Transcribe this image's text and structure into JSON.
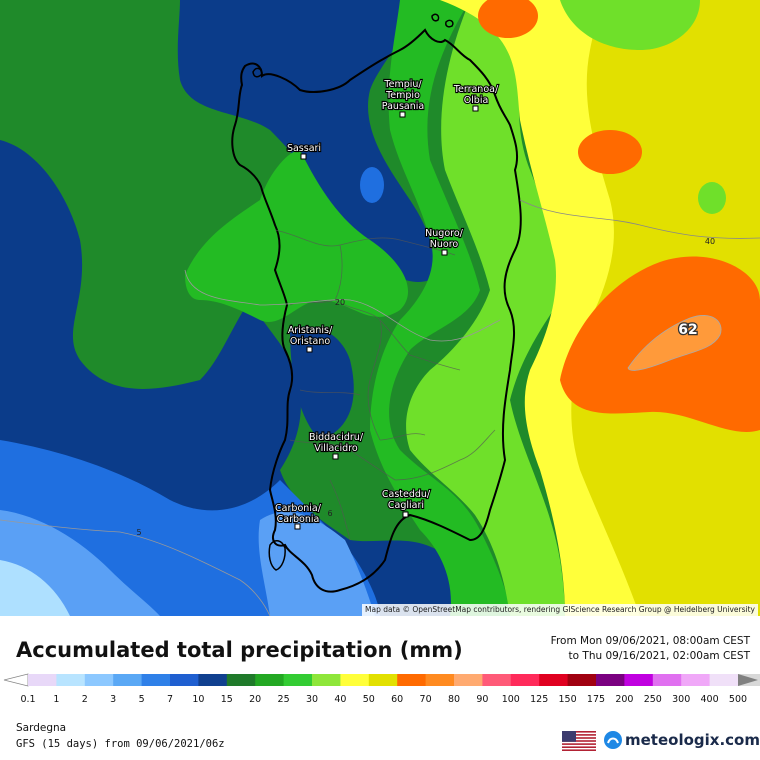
{
  "map": {
    "attribution": "Map data © OpenStreetMap contributors, rendering GIScience Research Group @ Heidelberg University",
    "max_value_label": "62",
    "contour_labels": [
      "40",
      "20",
      "5",
      "6"
    ],
    "cities": [
      {
        "name": "Tempiu/",
        "name2": "Tempio",
        "name3": "Pausania"
      },
      {
        "name": "Terranoa/",
        "name2": "Olbia",
        "name3": ""
      },
      {
        "name": "Sassari",
        "name2": "",
        "name3": ""
      },
      {
        "name": "Nugoro/",
        "name2": "Nuoro",
        "name3": ""
      },
      {
        "name": "Aristanis/",
        "name2": "Oristano",
        "name3": ""
      },
      {
        "name": "Biddacidru/",
        "name2": "Villacidro",
        "name3": ""
      },
      {
        "name": "Carbonia/",
        "name2": "Carbonia",
        "name3": ""
      },
      {
        "name": "Casteddu/",
        "name2": "Cagliari",
        "name3": ""
      }
    ],
    "colors": {
      "dark_blue": "#0b3c8a",
      "dark_green": "#1f8a2a",
      "green": "#23bb23",
      "light_green": "#6fe02a",
      "yellow": "#ffff3a",
      "olive_yellow": "#e2e000",
      "orange": "#ff6a00",
      "light_orange": "#ff9a3a",
      "blue": "#1f6fe0",
      "light_blue": "#5aa0f5",
      "pale_blue": "#aee0ff"
    }
  },
  "footer": {
    "title": "Accumulated total precipitation (mm)",
    "period_from": "From Mon 09/06/2021, 08:00am CEST",
    "period_to": "to Thu 09/16/2021, 02:00am CEST",
    "region": "Sardegna",
    "model": "GFS (15 days) from  09/06/2021/06z",
    "brand": "meteologix.com",
    "flag_icon": "us-flag-icon"
  },
  "legend": {
    "ticks": [
      "0.1",
      "1",
      "2",
      "3",
      "5",
      "7",
      "10",
      "15",
      "20",
      "25",
      "30",
      "40",
      "50",
      "60",
      "70",
      "80",
      "90",
      "100",
      "125",
      "150",
      "175",
      "200",
      "250",
      "300",
      "400",
      "500"
    ],
    "colors": [
      "#e8d8f8",
      "#b8e4ff",
      "#8cc8ff",
      "#5aa8f5",
      "#2f80e8",
      "#1f5fd0",
      "#10408f",
      "#1f7a2a",
      "#23a823",
      "#33cc33",
      "#8ee63a",
      "#ffff3a",
      "#e2e000",
      "#ff6a00",
      "#ff8a20",
      "#ffaa70",
      "#ff5a78",
      "#ff2a5a",
      "#e00020",
      "#a00010",
      "#7a0080",
      "#c000e0",
      "#e070f0",
      "#f0a8f8",
      "#f0e0f8",
      "#d8d8d8"
    ]
  }
}
